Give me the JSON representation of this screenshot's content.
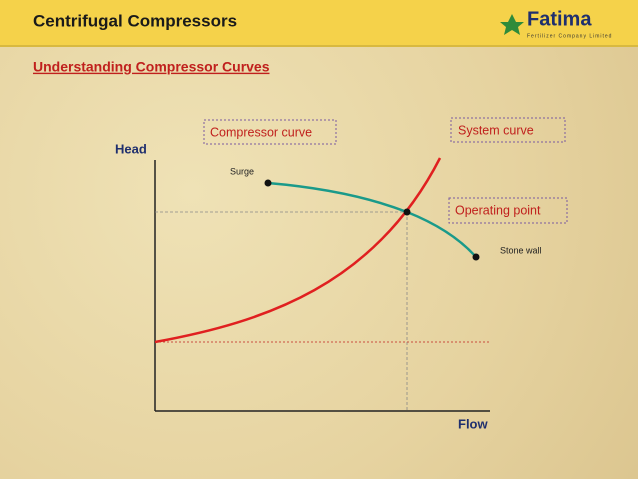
{
  "header": {
    "title": "Centrifugal Compressors",
    "subtitle": "Understanding Compressor Curves"
  },
  "logo": {
    "name": "Fatima",
    "tagline": "Fertilizer Company Limited"
  },
  "diagram": {
    "y_axis_label": "Head",
    "x_axis_label": "Flow",
    "labels": {
      "compressor_curve": "Compressor curve",
      "system_curve": "System curve",
      "operating_point": "Operating point",
      "surge": "Surge",
      "stone_wall": "Stone wall"
    }
  }
}
